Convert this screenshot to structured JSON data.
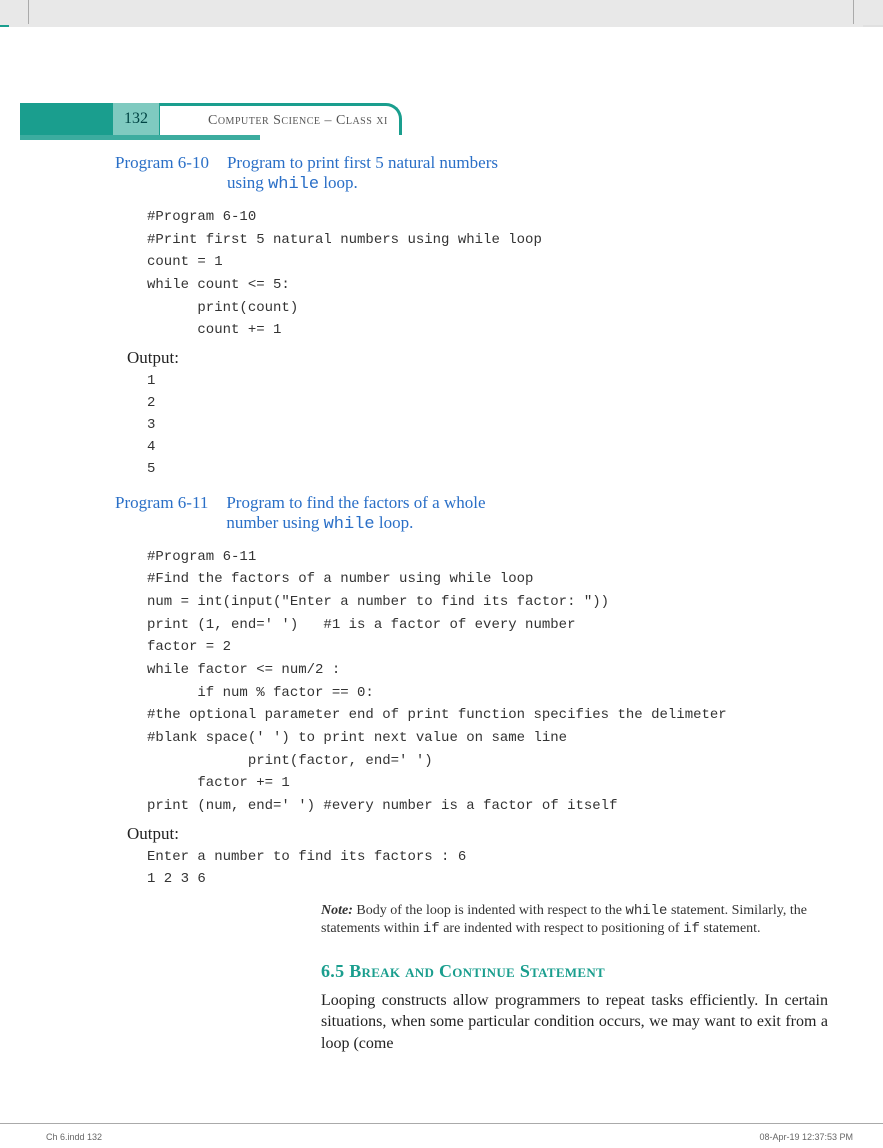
{
  "header": {
    "page_number": "132",
    "book_title": "Computer Science – Class xi"
  },
  "programs": [
    {
      "label": "Program 6-10",
      "title_line1": "Program to print first 5 natural numbers",
      "title_line2": "using ",
      "title_keyword": "while",
      "title_line2_after": " loop.",
      "code": "#Program 6-10\n#Print first 5 natural numbers using while loop\ncount = 1\nwhile count <= 5:\n      print(count)\n      count += 1",
      "output_label": "Output:",
      "output": "1\n2\n3\n4\n5"
    },
    {
      "label": "Program 6-11",
      "title_line1": "Program to find the factors of a whole",
      "title_line2": "number  using ",
      "title_keyword": "while",
      "title_line2_after": " loop.",
      "code": "#Program 6-11\n#Find the factors of a number using while loop\nnum = int(input(\"Enter a number to find its factor: \"))\nprint (1, end=' ')   #1 is a factor of every number\nfactor = 2\nwhile factor <= num/2 :\n      if num % factor == 0:\n#the optional parameter end of print function specifies the delimeter\n#blank space(' ') to print next value on same line\n            print(factor, end=' ')\n      factor += 1\nprint (num, end=' ') #every number is a factor of itself",
      "output_label": "Output:",
      "output": "Enter a number to find its factors : 6\n1 2 3 6"
    }
  ],
  "note": {
    "label": "Note:",
    "text_before_while": " Body of the loop is indented with respect to the ",
    "kw1": "while",
    "text_mid": " statement. Similarly, the statements within ",
    "kw2": "if",
    "text_mid2": " are indented with respect to positioning of ",
    "kw3": "if",
    "text_after": " statement."
  },
  "section": {
    "number": "6.5",
    "title": "Break and Continue Statement",
    "body": "Looping constructs allow programmers to repeat tasks efficiently. In certain situations, when some particular condition occurs, we may want to exit from a loop (come"
  },
  "footer": {
    "left": "Ch 6.indd   132",
    "right": "08-Apr-19   12:37:53 PM"
  }
}
